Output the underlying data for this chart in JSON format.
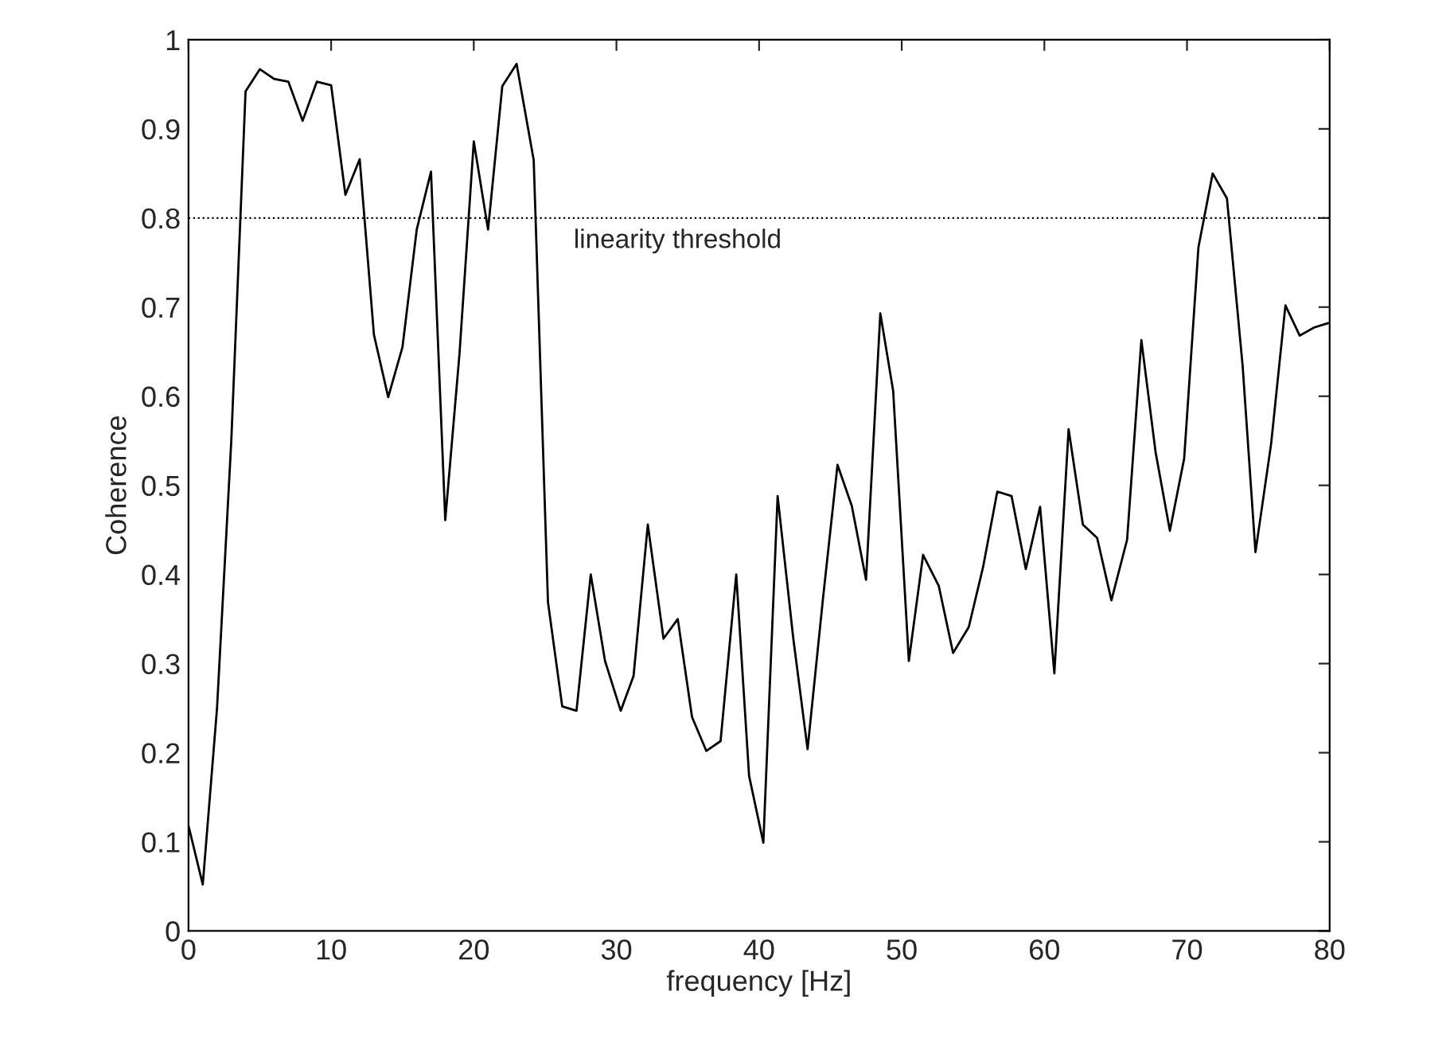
{
  "chart_data": {
    "type": "line",
    "xlabel": "frequency [Hz]",
    "ylabel": "Coherence",
    "x": [
      0,
      1,
      2,
      3,
      4,
      5,
      6,
      7,
      8,
      9,
      10,
      11,
      12,
      13,
      14,
      15,
      16,
      17,
      18,
      19,
      20,
      21,
      22,
      23,
      24.2,
      25.2,
      26.2,
      27.2,
      28.2,
      29.2,
      30.3,
      31.2,
      32.2,
      33.3,
      34.3,
      35.3,
      36.3,
      37.3,
      38.4,
      39.3,
      40.3,
      41.3,
      42.4,
      43.4,
      44.5,
      45.5,
      46.5,
      47.5,
      48.5,
      49.4,
      50.5,
      51.5,
      52.6,
      53.6,
      54.7,
      55.7,
      56.7,
      57.7,
      58.7,
      59.7,
      60.7,
      61.7,
      62.7,
      63.7,
      64.7,
      65.8,
      66.8,
      67.8,
      68.8,
      69.8,
      70.8,
      71.8,
      72.8,
      73.9,
      74.8,
      75.9,
      76.9,
      77.9,
      78.9,
      79.9
    ],
    "series": [
      {
        "color": "#000000",
        "values": [
          0.118,
          0.052,
          0.25,
          0.55,
          0.942,
          0.967,
          0.956,
          0.953,
          0.909,
          0.953,
          0.949,
          0.826,
          0.866,
          0.669,
          0.599,
          0.655,
          0.787,
          0.852,
          0.461,
          0.648,
          0.886,
          0.787,
          0.948,
          0.973,
          0.865,
          0.369,
          0.252,
          0.247,
          0.4,
          0.303,
          0.247,
          0.286,
          0.456,
          0.328,
          0.35,
          0.24,
          0.202,
          0.213,
          0.4,
          0.174,
          0.099,
          0.488,
          0.328,
          0.204,
          0.376,
          0.523,
          0.477,
          0.394,
          0.693,
          0.606,
          0.303,
          0.422,
          0.387,
          0.312,
          0.341,
          0.408,
          0.493,
          0.488,
          0.406,
          0.476,
          0.289,
          0.563,
          0.456,
          0.441,
          0.371,
          0.439,
          0.663,
          0.537,
          0.449,
          0.53,
          0.767,
          0.85,
          0.822,
          0.634,
          0.425,
          0.547,
          0.702,
          0.668,
          0.677,
          0.682
        ]
      }
    ],
    "xlim": [
      0,
      80
    ],
    "xticks": [
      0,
      10,
      20,
      30,
      40,
      50,
      60,
      70,
      80
    ],
    "ylim": [
      0,
      1
    ],
    "yticks": [
      0,
      0.1,
      0.2,
      0.3,
      0.4,
      0.5,
      0.6,
      0.7,
      0.8,
      0.9,
      1
    ],
    "ref_lines": [
      {
        "axis": "y",
        "value": 0.8,
        "label": "linearity threshold",
        "color": "#000000",
        "line_style": "dotted"
      }
    ],
    "grid": false,
    "legend": false,
    "marker": "none",
    "line_style": "solid"
  }
}
